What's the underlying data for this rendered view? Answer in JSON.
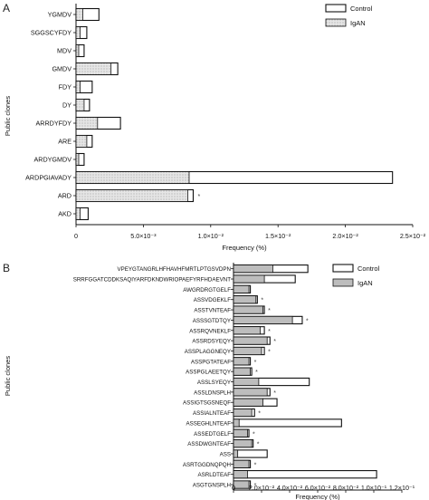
{
  "colors": {
    "control_fill": "#ffffff",
    "igan_fill": "#dcdcdc",
    "igan_fill_b": "#bdbdbd",
    "stroke": "#111111"
  },
  "chart_data": [
    {
      "panel": "A",
      "type": "bar",
      "orientation": "horizontal",
      "layout": "overlapping",
      "ylabel": "Public clones",
      "xlabel": "Frequency (%)",
      "xlim": [
        0,
        0.025
      ],
      "xticks": [
        0,
        0.005,
        0.01,
        0.015,
        0.02,
        0.025
      ],
      "xtick_labels": [
        "0",
        "5.0×10⁻³",
        "1.0×10⁻²",
        "1.5×10⁻²",
        "2.0×10⁻²",
        "2.5×10⁻²"
      ],
      "categories": [
        "YGMDV",
        "SGGSCYFDY",
        "MDV",
        "GMDV",
        "FDY",
        "DY",
        "ARRDYFDY",
        "ARE",
        "ARDYGMDV",
        "ARDPGIAVADY",
        "ARD",
        "AKD"
      ],
      "series": [
        {
          "name": "Control",
          "values": [
            0.0017,
            0.0008,
            0.0006,
            0.0031,
            0.0012,
            0.001,
            0.0033,
            0.0012,
            0.0006,
            0.0235,
            0.0087,
            0.0009
          ]
        },
        {
          "name": "IgAN",
          "values": [
            0.0005,
            0.0003,
            0.0002,
            0.0026,
            0.0003,
            0.0006,
            0.0016,
            0.0008,
            0.0002,
            0.0084,
            0.0083,
            0.0003
          ]
        }
      ],
      "significant": [
        false,
        false,
        false,
        false,
        false,
        false,
        false,
        false,
        false,
        false,
        true,
        false
      ],
      "legend_position": "top-right"
    },
    {
      "panel": "B",
      "type": "bar",
      "orientation": "horizontal",
      "layout": "overlapping",
      "ylabel": "Public clones",
      "xlabel": "Frequency (%)",
      "xlim": [
        0,
        0.12
      ],
      "xticks": [
        0,
        0.02,
        0.04,
        0.06,
        0.08,
        0.1,
        0.12
      ],
      "xtick_labels": [
        "0",
        "2.0×10⁻²",
        "4.0×10⁻²",
        "6.0×10⁻²",
        "8.0×10⁻²",
        "1.0×10⁻¹",
        "1.2×10⁻¹"
      ],
      "categories": [
        "VPEYGTANGRLHFHAVHFMRTLPTGSVDPN",
        "SRRFGGATCDDKSAQIYARFDKNDWRIOPAEFYRFHDAEVNT",
        "AWGRDRGTGELF",
        "ASSVDGEKLF",
        "ASSTVNTEAF",
        "ASSSGTDTQY",
        "ASSRQVNEKLF",
        "ASSRDSYEQY",
        "ASSPLAGGNEQY",
        "ASSPGTATEAF",
        "ASSPGLAEETQY",
        "ASSLSYEQY",
        "ASSLDNSPLH",
        "ASSIGTSGSNEQF",
        "ASSIALNTEAF",
        "ASSEGHLNTEAF",
        "ASSEDTGELF",
        "ASSDWGNTEAF",
        "ASS",
        "ASRTGGDNQPQH",
        "ASRLDTEAF",
        "ASGTGNSPLH"
      ],
      "series": [
        {
          "name": "Control",
          "values": [
            0.053,
            0.044,
            0.012,
            0.017,
            0.022,
            0.049,
            0.022,
            0.026,
            0.022,
            0.012,
            0.013,
            0.054,
            0.026,
            0.031,
            0.015,
            0.077,
            0.011,
            0.014,
            0.024,
            0.012,
            0.102,
            0.012
          ]
        },
        {
          "name": "IgAN",
          "values": [
            0.028,
            0.022,
            0.011,
            0.016,
            0.021,
            0.042,
            0.019,
            0.024,
            0.02,
            0.011,
            0.012,
            0.018,
            0.024,
            0.021,
            0.013,
            0.004,
            0.01,
            0.013,
            0.003,
            0.011,
            0.01,
            0.011
          ]
        }
      ],
      "significant": [
        false,
        false,
        false,
        true,
        true,
        true,
        true,
        true,
        true,
        true,
        true,
        false,
        true,
        false,
        true,
        false,
        true,
        true,
        false,
        true,
        false,
        true
      ],
      "legend_position": "top-right"
    }
  ]
}
